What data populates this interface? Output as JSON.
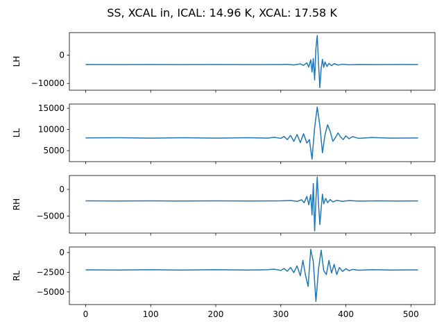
{
  "figure": {
    "title": "SS, XCAL in, ICAL: 14.96 K, XCAL: 17.58 K"
  },
  "chart_data": [
    {
      "type": "line",
      "ylabel": "LH",
      "xlim": [
        -25,
        537
      ],
      "ylim": [
        -12400,
        8000
      ],
      "yticks": [
        -10000,
        0
      ],
      "ytick_labels": [
        "−10000",
        "0"
      ],
      "xticks": [
        0,
        100,
        200,
        300,
        400,
        500
      ],
      "show_xtick_labels": false,
      "series": [
        {
          "color": "#1f77b4",
          "x": [
            0,
            50,
            100,
            150,
            200,
            250,
            300,
            310,
            320,
            330,
            335,
            340,
            343,
            346,
            348,
            350,
            352,
            354,
            356,
            358,
            360,
            362,
            364,
            366,
            368,
            371,
            374,
            378,
            382,
            388,
            395,
            405,
            420,
            450,
            480,
            511
          ],
          "y": [
            -3300,
            -3350,
            -3300,
            -3350,
            -3300,
            -3350,
            -3300,
            -3250,
            -3450,
            -3100,
            -3600,
            -2700,
            -4200,
            -1600,
            -6000,
            -1200,
            -8800,
            2500,
            7000,
            -3000,
            -11500,
            -4800,
            -1500,
            -4300,
            -2400,
            -4000,
            -2900,
            -3700,
            -3000,
            -3500,
            -3200,
            -3400,
            -3300,
            -3350,
            -3300,
            -3320
          ]
        }
      ]
    },
    {
      "type": "line",
      "ylabel": "LL",
      "xlim": [
        -25,
        537
      ],
      "ylim": [
        2400,
        16000
      ],
      "yticks": [
        5000,
        10000,
        15000
      ],
      "ytick_labels": [
        "5000",
        "10000",
        "15000"
      ],
      "xticks": [
        0,
        100,
        200,
        300,
        400,
        500
      ],
      "show_xtick_labels": false,
      "series": [
        {
          "color": "#1f77b4",
          "x": [
            0,
            50,
            100,
            150,
            200,
            250,
            280,
            290,
            300,
            305,
            310,
            315,
            320,
            325,
            330,
            335,
            340,
            344,
            348,
            352,
            356,
            360,
            364,
            368,
            372,
            376,
            380,
            384,
            388,
            392,
            396,
            400,
            405,
            410,
            420,
            440,
            470,
            511
          ],
          "y": [
            8000,
            8050,
            7950,
            8050,
            7950,
            8050,
            7950,
            8150,
            7900,
            8350,
            7600,
            8600,
            7200,
            8800,
            6900,
            9000,
            6800,
            7600,
            3000,
            10400,
            15300,
            11000,
            4500,
            8800,
            11100,
            9500,
            7200,
            8100,
            9200,
            8200,
            7600,
            8500,
            7800,
            8300,
            7900,
            8100,
            7950,
            8000
          ]
        }
      ]
    },
    {
      "type": "line",
      "ylabel": "RH",
      "xlim": [
        -25,
        537
      ],
      "ylim": [
        -8200,
        2600
      ],
      "yticks": [
        -5000,
        0
      ],
      "ytick_labels": [
        "−5000",
        "0"
      ],
      "xticks": [
        0,
        100,
        200,
        300,
        400,
        500
      ],
      "show_xtick_labels": false,
      "series": [
        {
          "color": "#1f77b4",
          "x": [
            0,
            50,
            100,
            150,
            200,
            250,
            300,
            315,
            325,
            332,
            336,
            340,
            343,
            346,
            348,
            350,
            352,
            354,
            356,
            358,
            360,
            362,
            364,
            366,
            369,
            372,
            376,
            380,
            386,
            394,
            405,
            420,
            450,
            480,
            511
          ],
          "y": [
            -2150,
            -2180,
            -2150,
            -2180,
            -2150,
            -2180,
            -2150,
            -2080,
            -2250,
            -1950,
            -2500,
            -1300,
            -2900,
            -1000,
            -4800,
            1100,
            -7800,
            -2000,
            2300,
            -2800,
            -6600,
            -3700,
            -900,
            -2700,
            -1700,
            -2500,
            -1900,
            -2350,
            -2050,
            -2250,
            -2100,
            -2200,
            -2150,
            -2180,
            -2160
          ]
        }
      ]
    },
    {
      "type": "line",
      "ylabel": "RL",
      "xlim": [
        -25,
        537
      ],
      "ylim": [
        -6600,
        700
      ],
      "yticks": [
        -5000,
        -2500,
        0
      ],
      "ytick_labels": [
        "−5000",
        "−2500",
        "0"
      ],
      "xticks": [
        0,
        100,
        200,
        300,
        400,
        500
      ],
      "show_xtick_labels": false,
      "series": [
        {
          "color": "#1f77b4",
          "x": [
            0,
            50,
            100,
            150,
            200,
            250,
            280,
            290,
            300,
            305,
            310,
            315,
            320,
            325,
            330,
            334,
            338,
            342,
            346,
            350,
            354,
            358,
            362,
            366,
            370,
            374,
            378,
            382,
            386,
            390,
            395,
            400,
            405,
            410,
            420,
            440,
            470,
            511
          ],
          "y": [
            -2200,
            -2230,
            -2180,
            -2230,
            -2180,
            -2230,
            -2180,
            -2120,
            -2270,
            -2030,
            -2380,
            -1900,
            -2550,
            -1700,
            -2950,
            -1000,
            -2900,
            -4300,
            400,
            -1200,
            -6200,
            -2100,
            300,
            -2300,
            -2800,
            -1000,
            -2600,
            -1500,
            -2800,
            -1900,
            -2400,
            -2050,
            -2300,
            -2150,
            -2250,
            -2180,
            -2230,
            -2200
          ]
        }
      ]
    }
  ],
  "shared_x": {
    "xticks": [
      0,
      100,
      200,
      300,
      400,
      500
    ],
    "xtick_labels": [
      "0",
      "100",
      "200",
      "300",
      "400",
      "500"
    ]
  }
}
